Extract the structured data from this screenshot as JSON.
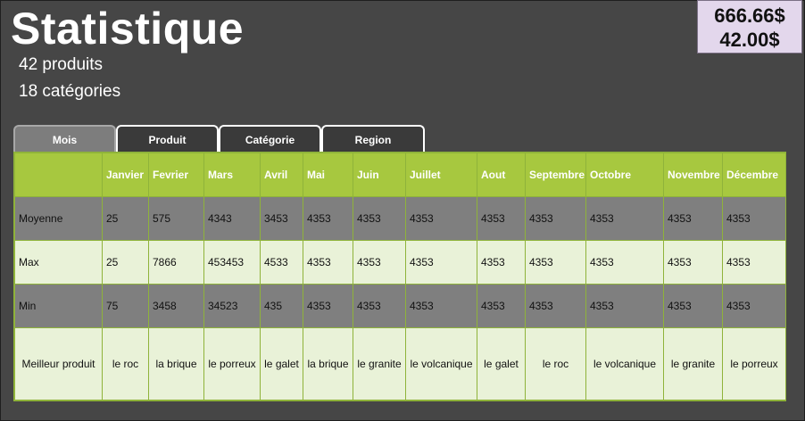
{
  "header": {
    "title": "Statistique",
    "products": "42 produits",
    "categories": "18 catégories"
  },
  "totals": {
    "amount1": "666.66$",
    "amount2": "42.00$"
  },
  "tabs": [
    {
      "label": "Mois",
      "active": true
    },
    {
      "label": "Produit",
      "active": false
    },
    {
      "label": "Catégorie",
      "active": false
    },
    {
      "label": "Region",
      "active": false
    }
  ],
  "table": {
    "columns": [
      "",
      "Janvier",
      "Fevrier",
      "Mars",
      "Avril",
      "Mai",
      "Juin",
      "Juillet",
      "Aout",
      "Septembre",
      "Octobre",
      "Novembre",
      "Décembre"
    ],
    "rows": [
      [
        "Moyenne",
        "25",
        "575",
        "4343",
        "3453",
        "4353",
        "4353",
        "4353",
        "4353",
        "4353",
        "4353",
        "4353",
        "4353"
      ],
      [
        "Max",
        "25",
        "7866",
        "453453",
        "4533",
        "4353",
        "4353",
        "4353",
        "4353",
        "4353",
        "4353",
        "4353",
        "4353"
      ],
      [
        "Min",
        "75",
        "3458",
        "34523",
        "435",
        "4353",
        "4353",
        "4353",
        "4353",
        "4353",
        "4353",
        "4353",
        "4353"
      ],
      [
        "Meilleur produit",
        "le roc",
        "la brique",
        "le porreux",
        "le galet",
        "la brique",
        "le granite",
        "le volcanique",
        "le galet",
        "le roc",
        "le volcanique",
        "le granite",
        "le porreux"
      ]
    ]
  },
  "colors": {
    "background": "#464646",
    "header_green": "#a7c83f",
    "row_dark": "#7f7f7f",
    "row_light": "#e9f2d8",
    "totals_bg": "#e3d7ec"
  }
}
